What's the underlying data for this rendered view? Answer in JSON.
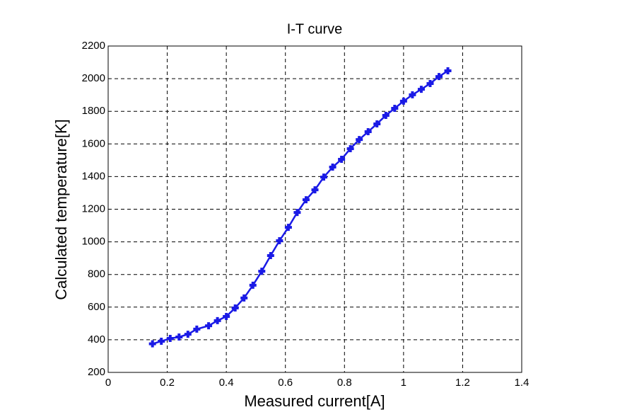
{
  "chart_data": {
    "type": "line",
    "title": "I-T curve",
    "x_label": "Measured current[A]",
    "y_label": "Calculated temperature[K]",
    "color": "#1a1ae6",
    "grid": true,
    "xlim": [
      0,
      1.4
    ],
    "xticks": [
      0,
      0.2,
      0.4,
      0.6,
      0.8,
      1,
      1.2,
      1.4
    ],
    "ylim": [
      200,
      2200
    ],
    "yticks": [
      200,
      400,
      600,
      800,
      1000,
      1200,
      1400,
      1600,
      1800,
      2000,
      2200
    ],
    "x": [
      0.15,
      0.18,
      0.21,
      0.24,
      0.27,
      0.3,
      0.34,
      0.37,
      0.4,
      0.43,
      0.46,
      0.49,
      0.52,
      0.55,
      0.58,
      0.61,
      0.64,
      0.67,
      0.7,
      0.73,
      0.76,
      0.79,
      0.82,
      0.85,
      0.88,
      0.91,
      0.94,
      0.97,
      1.0,
      1.03,
      1.06,
      1.09,
      1.12,
      1.15
    ],
    "values": [
      375,
      391,
      408,
      417,
      434,
      465,
      486,
      517,
      543,
      595,
      656,
      734,
      820,
      916,
      1007,
      1089,
      1180,
      1258,
      1319,
      1397,
      1458,
      1506,
      1571,
      1627,
      1675,
      1723,
      1775,
      1818,
      1862,
      1901,
      1935,
      1970,
      2013,
      2048
    ]
  }
}
